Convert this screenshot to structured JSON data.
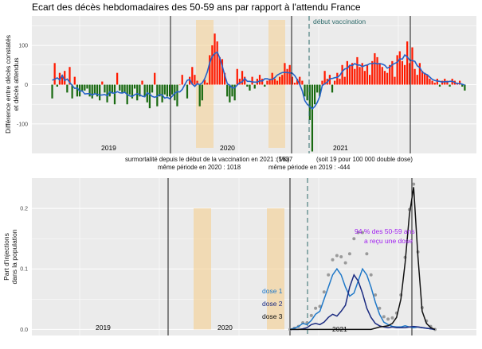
{
  "chart_data": [
    {
      "type": "bar",
      "title": "Ecart des décès hebdomadaires des 50-59 ans par rapport à l'attendu France",
      "ylabel": "Différence entre décès constatés et décès attendus",
      "yticks": [
        "100",
        "0",
        "-100"
      ],
      "ylim": [
        -175,
        175
      ],
      "series_colors": {
        "positive": "#ff1a00",
        "negative": "#1a6b12",
        "smooth": "#2563c9"
      },
      "year_labels": [
        "2019",
        "2020",
        "2021"
      ],
      "vaccination_label": "début vaccination",
      "values": [
        -35,
        55,
        -5,
        30,
        25,
        35,
        -20,
        45,
        -35,
        20,
        -30,
        -30,
        -15,
        -15,
        -10,
        -30,
        -35,
        -25,
        -30,
        -40,
        8,
        -20,
        -45,
        -30,
        -20,
        -50,
        30,
        -15,
        -20,
        -20,
        -50,
        -25,
        -35,
        -10,
        -40,
        -30,
        10,
        -30,
        -45,
        -60,
        -20,
        30,
        -55,
        -30,
        -45,
        -25,
        -30,
        -30,
        -25,
        -40,
        -55,
        0,
        25,
        0,
        -35,
        20,
        45,
        25,
        10,
        -55,
        -40,
        12,
        5,
        75,
        100,
        130,
        110,
        70,
        65,
        30,
        -30,
        -45,
        -30,
        -40,
        40,
        15,
        35,
        20,
        -5,
        -15,
        20,
        -10,
        15,
        25,
        15,
        -5,
        10,
        15,
        30,
        15,
        10,
        20,
        25,
        55,
        40,
        50,
        20,
        5,
        15,
        20,
        10,
        -30,
        -40,
        -90,
        -170,
        -50,
        -20,
        -30,
        10,
        35,
        15,
        25,
        -20,
        10,
        30,
        15,
        50,
        20,
        60,
        50,
        55,
        40,
        70,
        45,
        55,
        35,
        50,
        25,
        60,
        80,
        70,
        55,
        45,
        35,
        30,
        50,
        60,
        20,
        75,
        85,
        60,
        50,
        110,
        55,
        95,
        40,
        25,
        55,
        35,
        30,
        25,
        15,
        10,
        5,
        15,
        -5,
        10,
        15,
        10,
        -5,
        15,
        10,
        5,
        10,
        -5,
        -15
      ]
    },
    {
      "type": "line",
      "ylabel": "Part d'injections dans la population",
      "yticks": [
        "0.2",
        "0.1",
        "0.0"
      ],
      "ylim": [
        -0.01,
        0.25
      ],
      "year_labels": [
        "2019",
        "2020",
        "2021"
      ],
      "annotation": "94 % des 50-59 ans a reçu une dose",
      "annotation_color": "#a020f0",
      "dose_colors": {
        "dose 1": "#1f78c8",
        "dose 2": "#1a2a80",
        "dose 3": "#111111"
      },
      "legend": [
        "dose 1",
        "dose 2",
        "dose 3"
      ],
      "week_index_start": 100,
      "dose1": [
        0,
        0.002,
        0.005,
        0.01,
        0.008,
        0.015,
        0.025,
        0.03,
        0.05,
        0.07,
        0.09,
        0.1,
        0.09,
        0.07,
        0.055,
        0.06,
        0.08,
        0.1,
        0.09,
        0.07,
        0.045,
        0.025,
        0.012,
        0.008,
        0.005,
        0.004,
        0.004,
        0.006,
        0.004,
        0.003,
        0.004,
        0.003,
        0.002,
        0.001,
        0
      ],
      "dose2": [
        0,
        0,
        0,
        0.001,
        0.003,
        0.008,
        0.01,
        0.008,
        0.012,
        0.02,
        0.025,
        0.022,
        0.03,
        0.04,
        0.07,
        0.09,
        0.08,
        0.06,
        0.035,
        0.02,
        0.01,
        0.006,
        0.004,
        0.003,
        0.004,
        0.003,
        0.003,
        0.003,
        0.004,
        0.005,
        0.004,
        0.003,
        0.002,
        0.001,
        0
      ],
      "dose3": [
        0,
        0,
        0,
        0,
        0,
        0,
        0,
        0,
        0,
        0,
        0,
        0,
        0,
        0,
        0,
        0,
        0,
        0,
        0,
        0,
        0.002,
        0.004,
        0.005,
        0.006,
        0.01,
        0.02,
        0.05,
        0.11,
        0.19,
        0.235,
        0.12,
        0.03,
        0.01,
        0.003,
        0
      ],
      "total_points": [
        0,
        0.002,
        0.005,
        0.011,
        0.011,
        0.023,
        0.035,
        0.038,
        0.062,
        0.09,
        0.115,
        0.122,
        0.12,
        0.11,
        0.125,
        0.15,
        0.16,
        0.16,
        0.125,
        0.09,
        0.057,
        0.035,
        0.021,
        0.017,
        0.019,
        0.027,
        0.057,
        0.119,
        0.198,
        0.24,
        0.128,
        0.036,
        0.014,
        0.005,
        0
      ]
    }
  ],
  "notes": {
    "surmortalite_2021": "surmortalité depuis le début de la vaccination en 2021 : 1637",
    "pct": "(5%)",
    "per_100k": "(soit 19 pour 100 000 double dose)",
    "meme_2020": "même période en 2020 : 1018",
    "meme_2019": "même période en 2019 : -444"
  }
}
